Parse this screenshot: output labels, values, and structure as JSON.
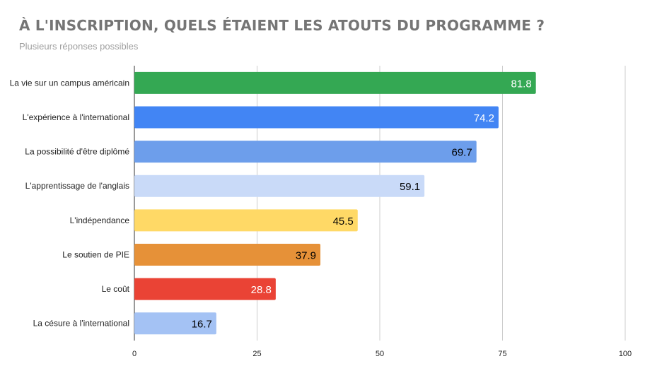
{
  "chart_data": {
    "type": "bar",
    "orientation": "horizontal",
    "title": "À L'INSCRIPTION, QUELS ÉTAIENT LES ATOUTS DU PROGRAMME ?",
    "subtitle": "Plusieurs réponses possibles",
    "categories": [
      "La vie sur un campus américain",
      "L'expérience à l'international",
      "La possibilité d'être diplômé",
      "L'apprentissage de l'anglais",
      "L'indépendance",
      "Le soutien de PIE",
      "Le coût",
      "La césure à l'international"
    ],
    "values": [
      81.8,
      74.2,
      69.7,
      59.1,
      45.5,
      37.9,
      28.8,
      16.7
    ],
    "bar_colors": [
      "#34a853",
      "#4285f4",
      "#6d9eeb",
      "#c9daf8",
      "#ffd966",
      "#e69138",
      "#ea4335",
      "#a4c2f4"
    ],
    "label_colors": [
      "#ffffff",
      "#ffffff",
      "#000000",
      "#000000",
      "#000000",
      "#000000",
      "#ffffff",
      "#000000"
    ],
    "xlim": [
      0,
      100
    ],
    "xticks": [
      0,
      25,
      50,
      75,
      100
    ],
    "grid": true,
    "legend": "none"
  }
}
